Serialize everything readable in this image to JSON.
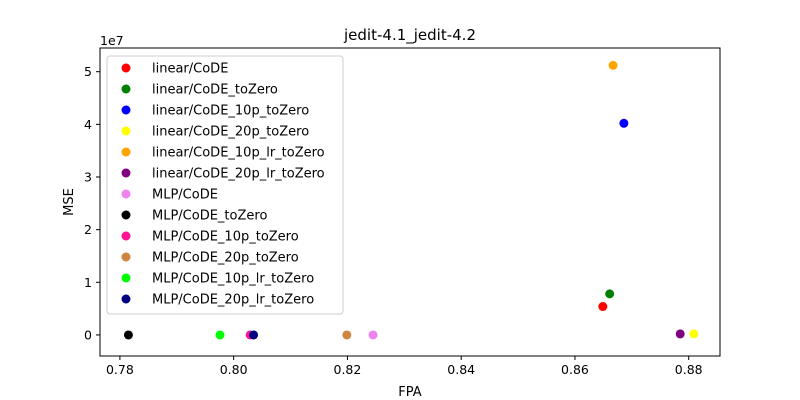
{
  "chart_data": {
    "type": "scatter",
    "title": "jedit-4.1_jedit-4.2",
    "xlabel": "FPA",
    "ylabel": "MSE",
    "y_offset_label": "1e7",
    "xlim": [
      0.7765,
      0.8855
    ],
    "ylim": [
      -4000000.0,
      54500000.0
    ],
    "x_ticks": [
      0.78,
      0.8,
      0.82,
      0.84,
      0.86,
      0.88
    ],
    "x_tick_labels": [
      "0.78",
      "0.80",
      "0.82",
      "0.84",
      "0.86",
      "0.88"
    ],
    "y_ticks": [
      0,
      10000000,
      20000000,
      30000000,
      40000000,
      50000000
    ],
    "y_tick_labels": [
      "0",
      "1",
      "2",
      "3",
      "4",
      "5"
    ],
    "grid": false,
    "legend_position": "upper-left",
    "series": [
      {
        "name": "linear/CoDE",
        "color": "#ff0000",
        "x": [
          0.8649
        ],
        "y": [
          5400000
        ]
      },
      {
        "name": "linear/CoDE_toZero",
        "color": "#008000",
        "x": [
          0.8661
        ],
        "y": [
          7800000
        ]
      },
      {
        "name": "linear/CoDE_10p_toZero",
        "color": "#0000ff",
        "x": [
          0.8686
        ],
        "y": [
          40200000
        ]
      },
      {
        "name": "linear/CoDE_20p_toZero",
        "color": "#ffff00",
        "x": [
          0.8809
        ],
        "y": [
          200000
        ]
      },
      {
        "name": "linear/CoDE_10p_lr_toZero",
        "color": "#ffa500",
        "x": [
          0.8667
        ],
        "y": [
          51200000
        ]
      },
      {
        "name": "linear/CoDE_20p_lr_toZero",
        "color": "#800080",
        "x": [
          0.8785
        ],
        "y": [
          200000
        ]
      },
      {
        "name": "MLP/CoDE",
        "color": "#ee82ee",
        "x": [
          0.8245
        ],
        "y": [
          0
        ]
      },
      {
        "name": "MLP/CoDE_toZero",
        "color": "#000000",
        "x": [
          0.7815
        ],
        "y": [
          0
        ]
      },
      {
        "name": "MLP/CoDE_10p_toZero",
        "color": "#ff1493",
        "x": [
          0.8029
        ],
        "y": [
          0
        ]
      },
      {
        "name": "MLP/CoDE_20p_toZero",
        "color": "#cd853f",
        "x": [
          0.8199
        ],
        "y": [
          0
        ]
      },
      {
        "name": "MLP/CoDE_10p_lr_toZero",
        "color": "#00ff00",
        "x": [
          0.7976
        ],
        "y": [
          0
        ]
      },
      {
        "name": "MLP/CoDE_20p_lr_toZero",
        "color": "#000080",
        "x": [
          0.8035
        ],
        "y": [
          0
        ]
      }
    ]
  }
}
